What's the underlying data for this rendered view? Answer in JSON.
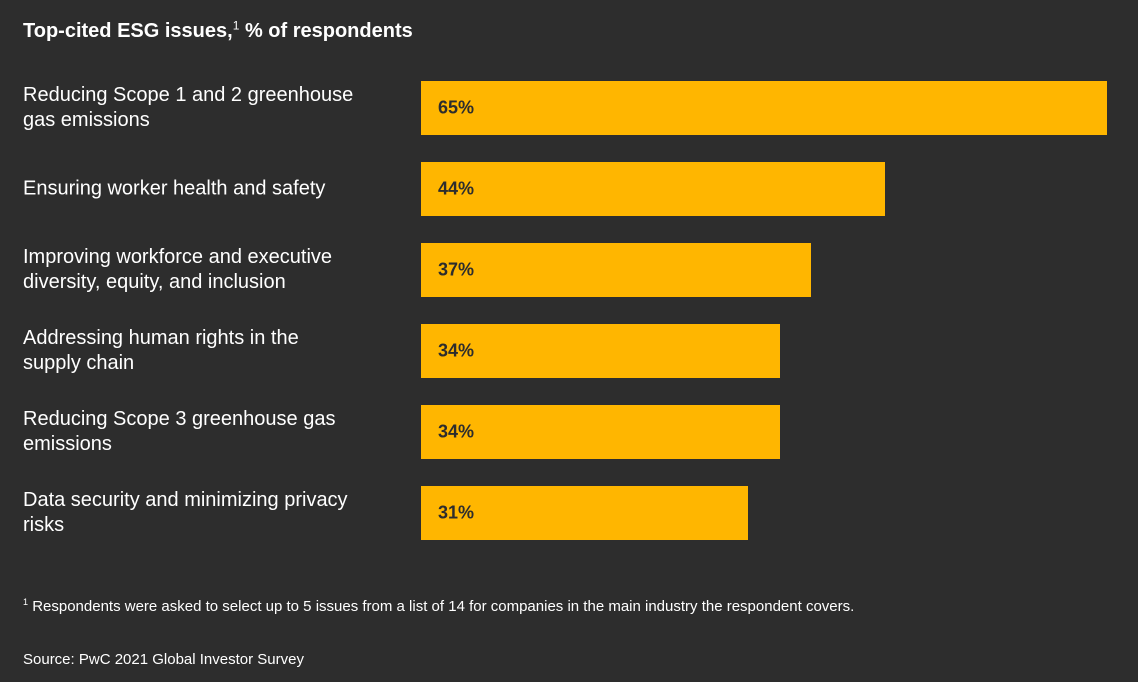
{
  "chart_data": {
    "type": "bar",
    "orientation": "horizontal",
    "title": "Top-cited ESG issues,",
    "title_footnote_marker": "1",
    "title_unit": "% of respondents",
    "categories": [
      "Reducing Scope 1 and 2 greenhouse\ngas emissions",
      "Ensuring worker health and safety",
      "Improving workforce and executive\ndiversity, equity, and inclusion",
      "Addressing human rights in the\nsupply chain",
      "Reducing Scope 3 greenhouse gas\nemissions",
      "Data security and minimizing privacy\nrisks"
    ],
    "values": [
      65,
      44,
      37,
      34,
      34,
      31
    ],
    "value_labels": [
      "65%",
      "44%",
      "37%",
      "34%",
      "34%",
      "31%"
    ],
    "color": "#ffb600",
    "footnote_marker": "1",
    "footnote": "Respondents were asked to select up to 5 issues from a list of 14 for companies in the main industry the respondent covers.",
    "source": "Source: PwC 2021 Global Investor Survey"
  }
}
